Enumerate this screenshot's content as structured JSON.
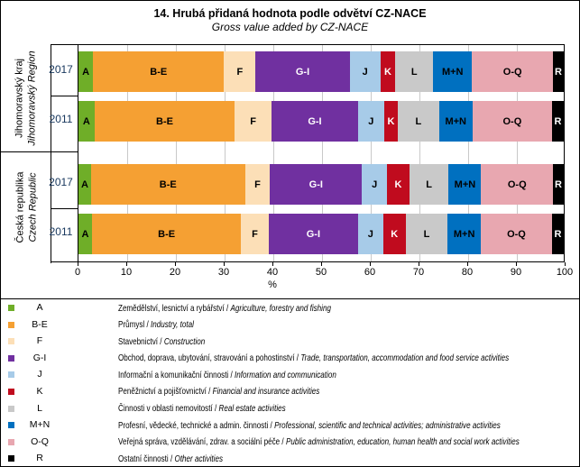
{
  "window": {
    "title": "14. Hrubá přidaná hodnota podle odvětví CZ-NACE",
    "subtitle": "Gross value added by CZ-NACE"
  },
  "chart_data": {
    "type": "bar",
    "stacked": true,
    "orientation": "horizontal",
    "unit": "%",
    "xlabel": "%",
    "xlim": [
      0,
      100
    ],
    "xticks": [
      "0",
      "10",
      "20",
      "30",
      "40",
      "50",
      "60",
      "70",
      "80",
      "90",
      "100"
    ],
    "grid": true,
    "year_label_color": "#17375D",
    "gridline_color": "#C9C9C9",
    "categories": [
      {
        "code": "A",
        "color": "#6FAE28",
        "label_color": "#000000"
      },
      {
        "code": "B-E",
        "color": "#F5A033",
        "label_color": "#000000"
      },
      {
        "code": "F",
        "color": "#FCDFB7",
        "label_color": "#000000"
      },
      {
        "code": "G-I",
        "color": "#7030A0",
        "label_color": "#FFFFFF"
      },
      {
        "code": "J",
        "color": "#A7CBE8",
        "label_color": "#000000"
      },
      {
        "code": "K",
        "color": "#C00B1E",
        "label_color": "#FFFFFF"
      },
      {
        "code": "L",
        "color": "#C9C9C9",
        "label_color": "#000000"
      },
      {
        "code": "M+N",
        "color": "#0070C0",
        "label_color": "#000000"
      },
      {
        "code": "O-Q",
        "color": "#E8A7B0",
        "label_color": "#000000"
      },
      {
        "code": "R",
        "color": "#000000",
        "label_color": "#FFFFFF"
      }
    ],
    "groups": [
      {
        "label_cz": "Jihomoravský kraj",
        "label_en": "Jihomoravský Region",
        "bars": [
          {
            "year": "2017",
            "values": [
              3.0,
              27.0,
              6.5,
              19.4,
              6.3,
              3.1,
              7.8,
              8.0,
              16.7,
              2.2
            ]
          },
          {
            "year": "2011",
            "values": [
              3.3,
              28.9,
              7.6,
              17.8,
              5.4,
              2.8,
              8.5,
              6.9,
              16.4,
              2.4
            ]
          }
        ]
      },
      {
        "label_cz": "Česká republika",
        "label_en": "Czech Republic",
        "bars": [
          {
            "year": "2017",
            "values": [
              2.6,
              31.7,
              5.2,
              18.9,
              5.2,
              4.6,
              8.1,
              6.7,
              14.8,
              2.2
            ]
          },
          {
            "year": "2011",
            "values": [
              2.8,
              30.7,
              5.7,
              18.4,
              5.2,
              4.6,
              8.7,
              6.8,
              14.7,
              2.4
            ]
          }
        ]
      }
    ]
  },
  "legend": {
    "items": [
      {
        "key": "A",
        "cz": "Zemědělství, lesnictví a rybářství /",
        "en": "Agriculture, forestry and fishing"
      },
      {
        "key": "B-E",
        "cz": "Průmysl /",
        "en": "Industry, total"
      },
      {
        "key": "F",
        "cz": "Stavebnictví /",
        "en": "Construction"
      },
      {
        "key": "G-I",
        "cz": "Obchod, doprava, ubytování, stravování a pohostinství /",
        "en": "Trade, transportation, accommodation and food service activities"
      },
      {
        "key": "J",
        "cz": "Informační a komunikační činnosti /",
        "en": "Information and communication"
      },
      {
        "key": "K",
        "cz": "Peněžnictví a pojišťovnictví /",
        "en": "Financial and insurance activities"
      },
      {
        "key": "L",
        "cz": "Činnosti v oblasti nemovitostí /",
        "en": "Real estate activities"
      },
      {
        "key": "M+N",
        "cz": "Profesní, vědecké, technické a admin. činnosti /",
        "en": "Professional, scientific and technical activities; administrative activities"
      },
      {
        "key": "O-Q",
        "cz": "Veřejná správa, vzdělávání, zdrav. a sociální péče /",
        "en": "Public administration, education, human health and social work activities"
      },
      {
        "key": "R",
        "cz": "Ostatní činnosti /",
        "en": "Other activities"
      }
    ]
  }
}
